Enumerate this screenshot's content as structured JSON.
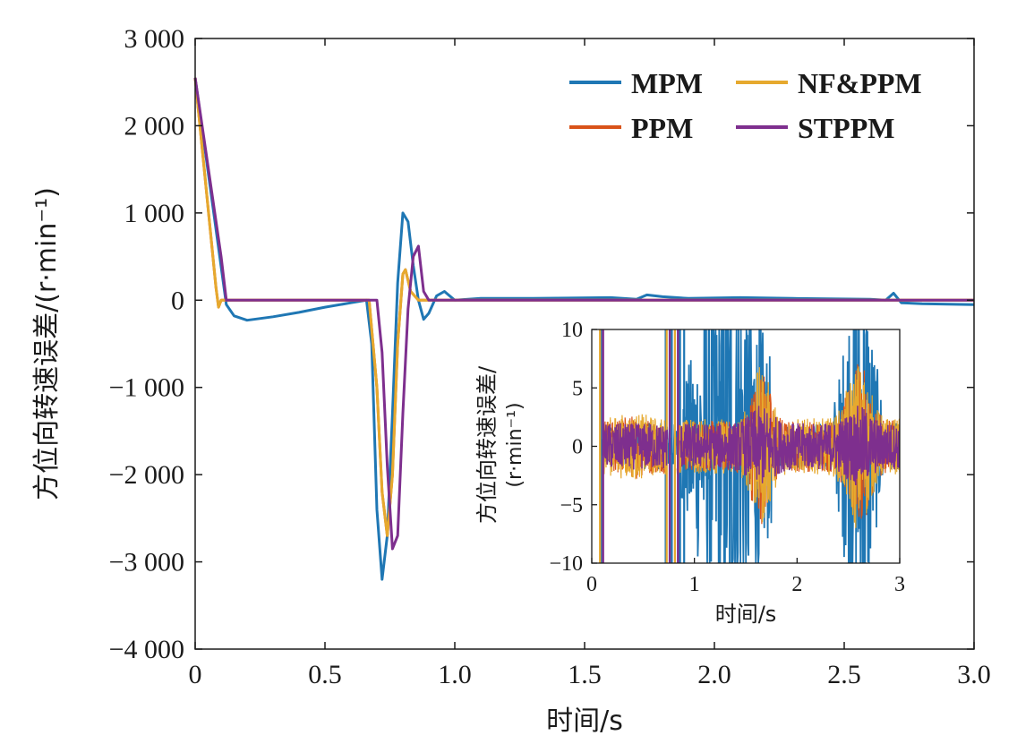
{
  "chart_data": [
    {
      "type": "line",
      "xlabel": "时间/s",
      "ylabel": "方位向转速误差/(r·min⁻¹)",
      "xlim": [
        0,
        3.0
      ],
      "ylim": [
        -4000,
        3000
      ],
      "xticks": [
        "0",
        "0.5",
        "1.0",
        "1.5",
        "2.0",
        "2.5",
        "3.0"
      ],
      "yticks": [
        "3 000",
        "2 000",
        "1 000",
        "0",
        "−1 000",
        "−2 000",
        "−3 000",
        "−4 000"
      ],
      "legend_position": "top-right",
      "grid": false,
      "series": [
        {
          "name": "MPM",
          "color": "#1f77b4",
          "x": [
            0,
            0.12,
            0.15,
            0.2,
            0.3,
            0.4,
            0.5,
            0.6,
            0.66,
            0.68,
            0.7,
            0.72,
            0.74,
            0.76,
            0.78,
            0.8,
            0.82,
            0.84,
            0.86,
            0.88,
            0.9,
            0.93,
            0.96,
            1.0,
            1.1,
            1.3,
            1.6,
            1.7,
            1.74,
            1.8,
            1.9,
            2.1,
            2.3,
            2.6,
            2.66,
            2.69,
            2.72,
            2.8,
            3.0
          ],
          "y": [
            2550,
            -50,
            -180,
            -230,
            -190,
            -140,
            -80,
            -30,
            0,
            -500,
            -2400,
            -3200,
            -2700,
            -1300,
            200,
            1000,
            900,
            400,
            0,
            -220,
            -150,
            50,
            100,
            0,
            20,
            20,
            30,
            10,
            60,
            40,
            20,
            30,
            20,
            10,
            0,
            80,
            -30,
            -40,
            -50
          ]
        },
        {
          "name": "NF&PPM",
          "color": "#e6a92e",
          "x": [
            0,
            0.08,
            0.09,
            0.1,
            0.67,
            0.7,
            0.72,
            0.74,
            0.76,
            0.78,
            0.8,
            0.81,
            0.83,
            0.86,
            3.0
          ],
          "y": [
            2550,
            150,
            -80,
            0,
            0,
            -1000,
            -2200,
            -2700,
            -2000,
            -500,
            300,
            350,
            100,
            0,
            0
          ]
        },
        {
          "name": "PPM",
          "color": "#d95319",
          "x": [
            0,
            0.08,
            0.09,
            0.1,
            0.67,
            0.7,
            0.72,
            0.74,
            0.76,
            0.78,
            0.8,
            0.81,
            0.83,
            0.86,
            3.0
          ],
          "y": [
            2550,
            150,
            -80,
            0,
            0,
            -1000,
            -2200,
            -2700,
            -2000,
            -500,
            300,
            350,
            100,
            0,
            0
          ]
        },
        {
          "name": "STPPM",
          "color": "#7e2f8e",
          "x": [
            0,
            0.1,
            0.12,
            0.7,
            0.72,
            0.74,
            0.76,
            0.78,
            0.8,
            0.82,
            0.84,
            0.86,
            0.88,
            0.9,
            3.0
          ],
          "y": [
            2550,
            500,
            0,
            0,
            -600,
            -1900,
            -2850,
            -2700,
            -1300,
            -100,
            500,
            620,
            100,
            0,
            0
          ]
        }
      ]
    },
    {
      "type": "line",
      "inset": true,
      "xlabel": "时间/s",
      "ylabel": [
        "方位向转速误差/",
        "(r·min⁻¹)"
      ],
      "xlim": [
        0,
        3
      ],
      "ylim": [
        -10,
        10
      ],
      "xticks": [
        "0",
        "1",
        "2",
        "3"
      ],
      "yticks": [
        "10",
        "5",
        "0",
        "−5",
        "−10"
      ],
      "series": [
        {
          "name": "MPM",
          "color": "#1f77b4"
        },
        {
          "name": "NF&PPM",
          "color": "#e6a92e"
        },
        {
          "name": "PPM",
          "color": "#d95319"
        },
        {
          "name": "STPPM",
          "color": "#7e2f8e"
        }
      ]
    }
  ]
}
